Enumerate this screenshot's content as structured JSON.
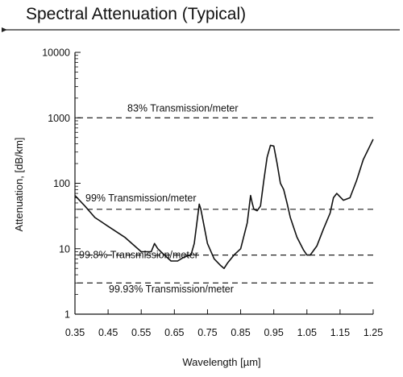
{
  "chart_data": {
    "type": "line",
    "title": "Spectral Attenuation (Typical)",
    "xlabel": "Wavelength [µm]",
    "ylabel": "Attenuation, [dB/km]",
    "y_scale": "log",
    "xlim": [
      0.35,
      1.25
    ],
    "ylim": [
      1,
      10000
    ],
    "grid": false,
    "x_ticks": [
      "0.35",
      "0.45",
      "0.55",
      "0.65",
      "0.75",
      "0.85",
      "0.95",
      "1.05",
      "1.15",
      "1.25"
    ],
    "y_ticks": [
      "1",
      "10",
      "100",
      "1000",
      "10000"
    ],
    "series": [
      {
        "x": [
          0.35,
          0.38,
          0.41,
          0.45,
          0.5,
          0.55,
          0.58,
          0.59,
          0.6,
          0.62,
          0.64,
          0.66,
          0.68,
          0.7,
          0.71,
          0.72,
          0.725,
          0.73,
          0.75,
          0.77,
          0.79,
          0.8,
          0.81,
          0.83,
          0.85,
          0.87,
          0.88,
          0.885,
          0.89,
          0.9,
          0.91,
          0.92,
          0.93,
          0.94,
          0.95,
          0.96,
          0.97,
          0.98,
          0.99,
          1.0,
          1.02,
          1.04,
          1.05,
          1.06,
          1.08,
          1.1,
          1.12,
          1.13,
          1.14,
          1.16,
          1.18,
          1.2,
          1.22,
          1.24,
          1.25
        ],
        "y": [
          65,
          45,
          30,
          22,
          15,
          9,
          9,
          12,
          10,
          8,
          6.5,
          6.5,
          7.5,
          8,
          12,
          30,
          48,
          40,
          12,
          7,
          5.5,
          5,
          6,
          8,
          10,
          25,
          65,
          50,
          40,
          38,
          45,
          110,
          250,
          380,
          370,
          200,
          100,
          80,
          50,
          30,
          15,
          9.5,
          8,
          8,
          11,
          20,
          35,
          60,
          70,
          55,
          60,
          110,
          230,
          370,
          470
        ]
      }
    ],
    "reference_lines": [
      {
        "y": 1000,
        "label": "83% Transmission/meter"
      },
      {
        "y": 40,
        "label": "99% Transmission/meter"
      },
      {
        "y": 8,
        "label": "99.8% Transmission/meter"
      },
      {
        "y": 3,
        "label": "99.93% Transmission/meter"
      }
    ]
  }
}
